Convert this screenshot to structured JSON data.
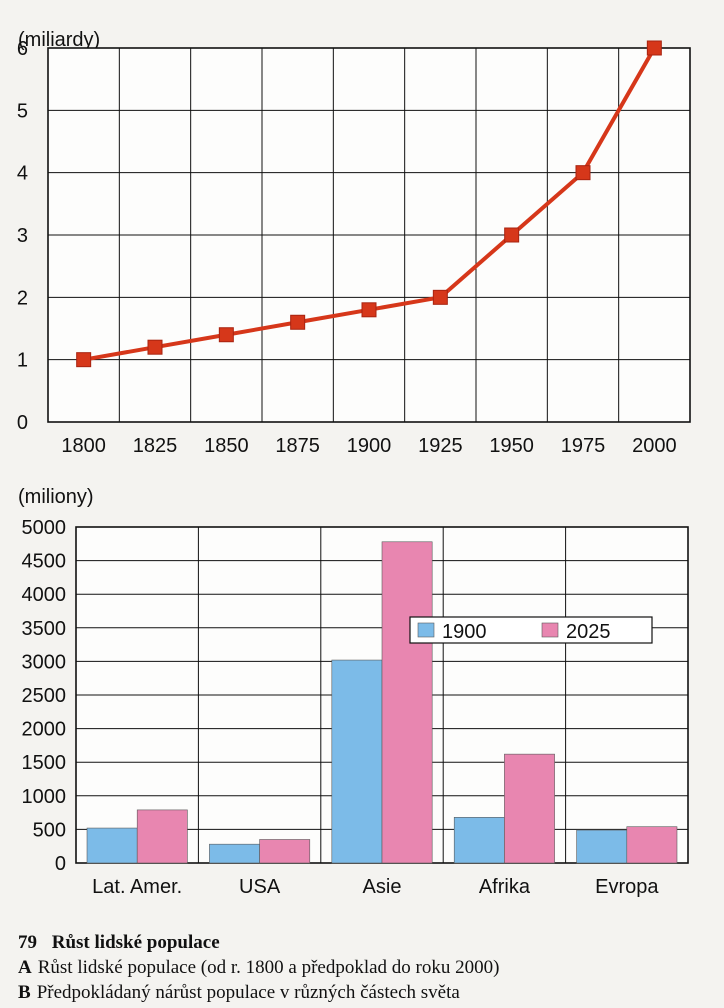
{
  "chart_data": [
    {
      "type": "line",
      "unit_label": "(miliardy)",
      "x": [
        1800,
        1825,
        1850,
        1875,
        1900,
        1925,
        1950,
        1975,
        2000
      ],
      "series": [
        {
          "values": [
            1,
            1.2,
            1.4,
            1.6,
            1.8,
            2,
            3,
            4,
            6
          ]
        }
      ],
      "ylim": [
        0,
        6
      ],
      "yticks": [
        0,
        1,
        2,
        3,
        4,
        5,
        6
      ],
      "grid": true,
      "colors": {
        "line": "#d6371a",
        "marker": "#d6371a"
      }
    },
    {
      "type": "bar",
      "unit_label": "(miliony)",
      "categories": [
        "Lat. Amer.",
        "USA",
        "Asie",
        "Afrika",
        "Evropa"
      ],
      "series": [
        {
          "name": "1900",
          "color": "#7cbbe8",
          "values": [
            520,
            280,
            3020,
            680,
            490
          ]
        },
        {
          "name": "2025",
          "color": "#e886b0",
          "values": [
            790,
            350,
            4780,
            1620,
            540
          ]
        }
      ],
      "ylim": [
        0,
        5000
      ],
      "yticks": [
        0,
        500,
        1000,
        1500,
        2000,
        2500,
        3000,
        3500,
        4000,
        4500,
        5000
      ],
      "grid": true,
      "legend": "inside-right"
    }
  ],
  "caption": {
    "number": "79",
    "title": "Růst lidské populace",
    "lines": [
      {
        "letter": "A",
        "text": "Růst lidské populace (od r. 1800 a předpoklad do roku 2000)"
      },
      {
        "letter": "B",
        "text": "Předpokládaný nárůst populace v různých částech světa"
      }
    ]
  }
}
